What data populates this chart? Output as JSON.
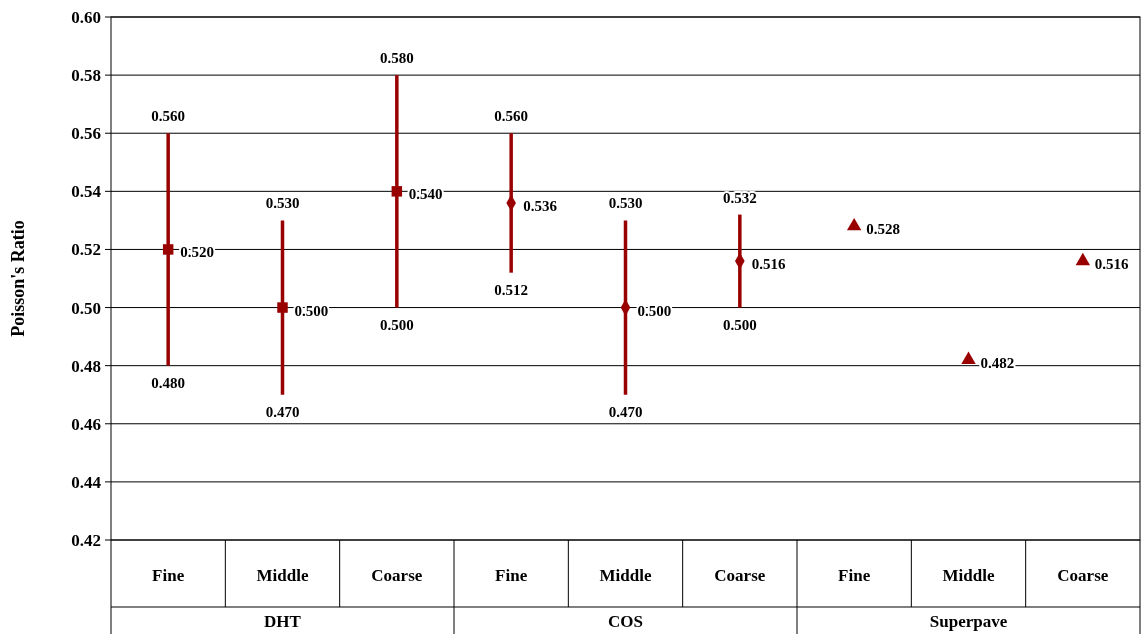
{
  "chart_data": {
    "type": "scatter",
    "ylabel": "Poisson's Ratio",
    "categories": [
      "Fine",
      "Middle",
      "Coarse",
      "Fine",
      "Middle",
      "Coarse",
      "Fine",
      "Middle",
      "Coarse"
    ],
    "annotations": [
      "DHT",
      "COS",
      "Superpave",
      {
        "text": "0.560",
        "y": 0.56
      },
      {
        "text": "0.480",
        "y": 0.48
      },
      {
        "text": "0.530",
        "y": 0.53
      },
      {
        "text": "0.470",
        "y": 0.47
      },
      {
        "text": "0.580",
        "y": 0.58
      },
      {
        "text": "0.500",
        "y": 0.5
      },
      {
        "text": "0.560",
        "y": 0.56
      },
      {
        "text": "0.512",
        "y": 0.512
      },
      {
        "text": "0.530",
        "y": 0.53
      },
      {
        "text": "0.470",
        "y": 0.47
      },
      {
        "text": "0.532",
        "y": 0.532
      },
      {
        "text": "0.500",
        "y": 0.5
      }
    ],
    "ylim": [
      0.42,
      0.6
    ],
    "yticks": [
      {
        "value": 0.42,
        "label": "0.42"
      },
      {
        "value": 0.44,
        "label": "0.44"
      },
      {
        "value": 0.46,
        "label": "0.46"
      },
      {
        "value": 0.48,
        "label": "0.48"
      },
      {
        "value": 0.5,
        "label": "0.50"
      },
      {
        "value": 0.52,
        "label": "0.52"
      },
      {
        "value": 0.54,
        "label": "0.54"
      },
      {
        "value": 0.56,
        "label": "0.56"
      },
      {
        "value": 0.58,
        "label": "0.58"
      },
      {
        "value": 0.6,
        "label": "0.60"
      }
    ],
    "grid": "y",
    "series": [
      {
        "color": "#990000",
        "marker": "square",
        "values": [
          0.52,
          0.5,
          0.54,
          null,
          null,
          null,
          null,
          null,
          null
        ],
        "errors": [
          [
            0.48,
            0.56
          ],
          [
            0.47,
            0.53
          ],
          [
            0.5,
            0.58
          ],
          null,
          null,
          null,
          null,
          null,
          null
        ],
        "value_labels": [
          "0.520",
          "0.500",
          "0.540",
          null,
          null,
          null,
          null,
          null,
          null
        ]
      },
      {
        "color": "#990000",
        "marker": "diamond",
        "values": [
          null,
          null,
          null,
          0.536,
          0.5,
          0.516,
          null,
          null,
          null
        ],
        "errors": [
          null,
          null,
          null,
          [
            0.512,
            0.56
          ],
          [
            0.47,
            0.53
          ],
          [
            0.5,
            0.532
          ],
          null,
          null,
          null
        ],
        "value_labels": [
          null,
          null,
          null,
          "0.536",
          "0.500",
          "0.516",
          null,
          null,
          null
        ]
      },
      {
        "color": "#990000",
        "marker": "triangle",
        "values": [
          null,
          null,
          null,
          null,
          null,
          null,
          0.528,
          0.482,
          0.516
        ],
        "value_labels": [
          null,
          null,
          null,
          null,
          null,
          null,
          "0.528",
          "0.482",
          "0.516"
        ]
      }
    ]
  }
}
